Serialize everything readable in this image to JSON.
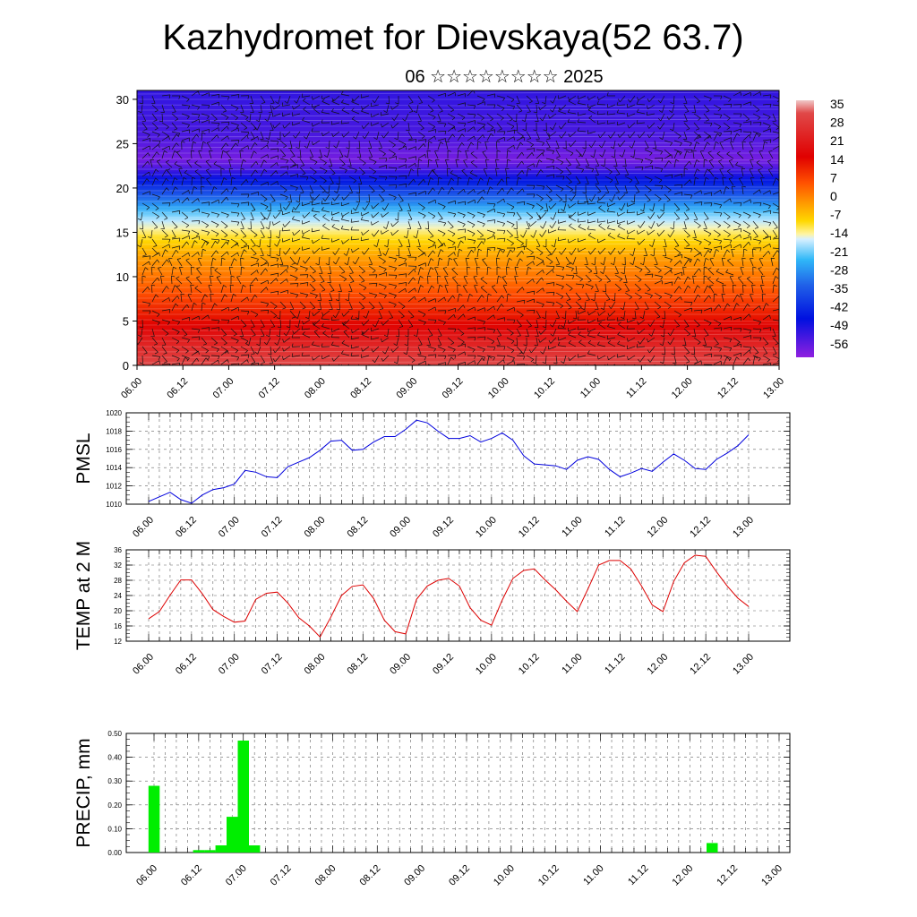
{
  "title": "Kazhydromet for Dievskaya(52 63.7)",
  "subtitle": "06 ☆☆☆☆☆☆☆☆ 2025",
  "time_labels": [
    "06.00",
    "06.12",
    "07.00",
    "07.12",
    "08.00",
    "08.12",
    "09.00",
    "09.12",
    "10.00",
    "10.12",
    "11.00",
    "11.12",
    "12.00",
    "12.12",
    "13.00"
  ],
  "chart_data": [
    {
      "type": "heatmap",
      "name": "temperature-wind-cross-section",
      "x_ticks": [
        "06.00",
        "06.12",
        "07.00",
        "07.12",
        "08.00",
        "08.12",
        "09.00",
        "09.12",
        "10.00",
        "10.12",
        "11.00",
        "11.12",
        "12.00",
        "12.12",
        "13.00"
      ],
      "ylim": [
        0,
        31
      ],
      "y_ticks": [
        0,
        5,
        10,
        15,
        20,
        25,
        30
      ],
      "colorbar": {
        "labels": [
          "35",
          "28",
          "21",
          "14",
          "7",
          "0",
          "-7",
          "-14",
          "-21",
          "-28",
          "-35",
          "-42",
          "-49",
          "-56"
        ],
        "range": [
          -60,
          38
        ]
      },
      "temperature_profile": {
        "levels": [
          0,
          3,
          6,
          9,
          12,
          15,
          17,
          19,
          21,
          23,
          26,
          31
        ],
        "values": [
          33,
          26,
          18,
          10,
          4,
          -6,
          -18,
          -35,
          -48,
          -58,
          -54,
          -52
        ]
      },
      "wind_barbs": true
    },
    {
      "type": "line",
      "ylabel": "PMSL",
      "color": "#0000dd",
      "ylim": [
        1010,
        1020
      ],
      "y_ticks": [
        "1010",
        "1012",
        "1014",
        "1016",
        "1018",
        "1020"
      ],
      "x_ticks": [
        "06.00",
        "06.12",
        "07.00",
        "07.12",
        "08.00",
        "08.12",
        "09.00",
        "09.12",
        "10.00",
        "10.12",
        "11.00",
        "11.12",
        "12.00",
        "12.12",
        "13.00"
      ],
      "x": [
        0,
        3,
        6,
        9,
        12,
        15,
        18,
        21,
        24,
        27,
        30,
        33,
        36,
        39,
        42,
        45,
        48,
        51,
        54,
        57,
        60,
        63,
        66,
        69,
        72,
        75,
        78,
        81,
        84,
        87,
        90,
        93,
        96,
        99,
        102,
        105,
        108,
        111,
        114,
        117,
        120,
        123,
        126,
        129,
        132,
        135,
        138,
        141,
        144,
        147,
        150,
        153,
        156,
        159,
        162,
        165,
        168
      ],
      "values": [
        1010.3,
        1010.8,
        1011.3,
        1010.5,
        1010.1,
        1011.0,
        1011.6,
        1011.8,
        1012.2,
        1013.7,
        1013.5,
        1013.0,
        1012.9,
        1014.1,
        1014.6,
        1015.1,
        1015.9,
        1016.9,
        1017.0,
        1015.9,
        1016.0,
        1016.8,
        1017.4,
        1017.4,
        1018.2,
        1019.2,
        1018.9,
        1018.0,
        1017.2,
        1017.2,
        1017.5,
        1016.8,
        1017.2,
        1017.8,
        1017.0,
        1015.3,
        1014.4,
        1014.3,
        1014.2,
        1013.8,
        1014.8,
        1015.2,
        1014.9,
        1013.8,
        1013.0,
        1013.4,
        1013.9,
        1013.6,
        1014.6,
        1015.5,
        1014.8,
        1013.9,
        1013.8,
        1014.9,
        1015.6,
        1016.4,
        1017.6
      ]
    },
    {
      "type": "line",
      "ylabel": "TEMP at 2 M",
      "color": "#dd0000",
      "ylim": [
        12,
        36
      ],
      "y_ticks": [
        "12",
        "16",
        "20",
        "24",
        "28",
        "32",
        "36"
      ],
      "x_ticks": [
        "06.00",
        "06.12",
        "07.00",
        "07.12",
        "08.00",
        "08.12",
        "09.00",
        "09.12",
        "10.00",
        "10.12",
        "11.00",
        "11.12",
        "12.00",
        "12.12",
        "13.00"
      ],
      "x": [
        0,
        3,
        6,
        9,
        12,
        15,
        18,
        21,
        24,
        27,
        30,
        33,
        36,
        39,
        42,
        45,
        48,
        51,
        54,
        57,
        60,
        63,
        66,
        69,
        72,
        75,
        78,
        81,
        84,
        87,
        90,
        93,
        96,
        99,
        102,
        105,
        108,
        111,
        114,
        117,
        120,
        123,
        126,
        129,
        132,
        135,
        138,
        141,
        144,
        147,
        150,
        153,
        156,
        159,
        162,
        165,
        168
      ],
      "values": [
        17.9,
        19.8,
        24.1,
        28.1,
        28.1,
        24.5,
        20.3,
        18.5,
        17.0,
        17.3,
        23.0,
        24.6,
        24.9,
        22.0,
        18.2,
        16.0,
        13.1,
        18.3,
        24.0,
        26.4,
        26.8,
        23.2,
        17.5,
        14.5,
        13.9,
        23.0,
        26.5,
        28.0,
        28.5,
        26.5,
        20.8,
        17.5,
        16.2,
        22.8,
        28.5,
        30.6,
        31.0,
        28.1,
        25.5,
        22.5,
        19.8,
        25.7,
        32.0,
        33.2,
        33.2,
        31.0,
        26.5,
        21.5,
        19.8,
        27.7,
        32.6,
        34.6,
        34.3,
        30.2,
        26.5,
        23.3,
        21.1
      ]
    },
    {
      "type": "bar",
      "ylabel": "PRECIP, mm",
      "color": "#00ee00",
      "ylim": [
        0,
        0.5
      ],
      "y_ticks": [
        "0.00",
        "0.10",
        "0.20",
        "0.30",
        "0.40",
        "0.50"
      ],
      "x_ticks": [
        "06.00",
        "06.12",
        "07.00",
        "07.12",
        "08.00",
        "08.12",
        "09.00",
        "09.12",
        "10.00",
        "10.12",
        "11.00",
        "11.12",
        "12.00",
        "12.12",
        "13.00"
      ],
      "x": [
        0,
        12,
        15,
        18,
        21,
        24,
        27,
        150
      ],
      "values": [
        0.28,
        0.01,
        0.01,
        0.03,
        0.15,
        0.47,
        0.03,
        0.04
      ]
    }
  ]
}
